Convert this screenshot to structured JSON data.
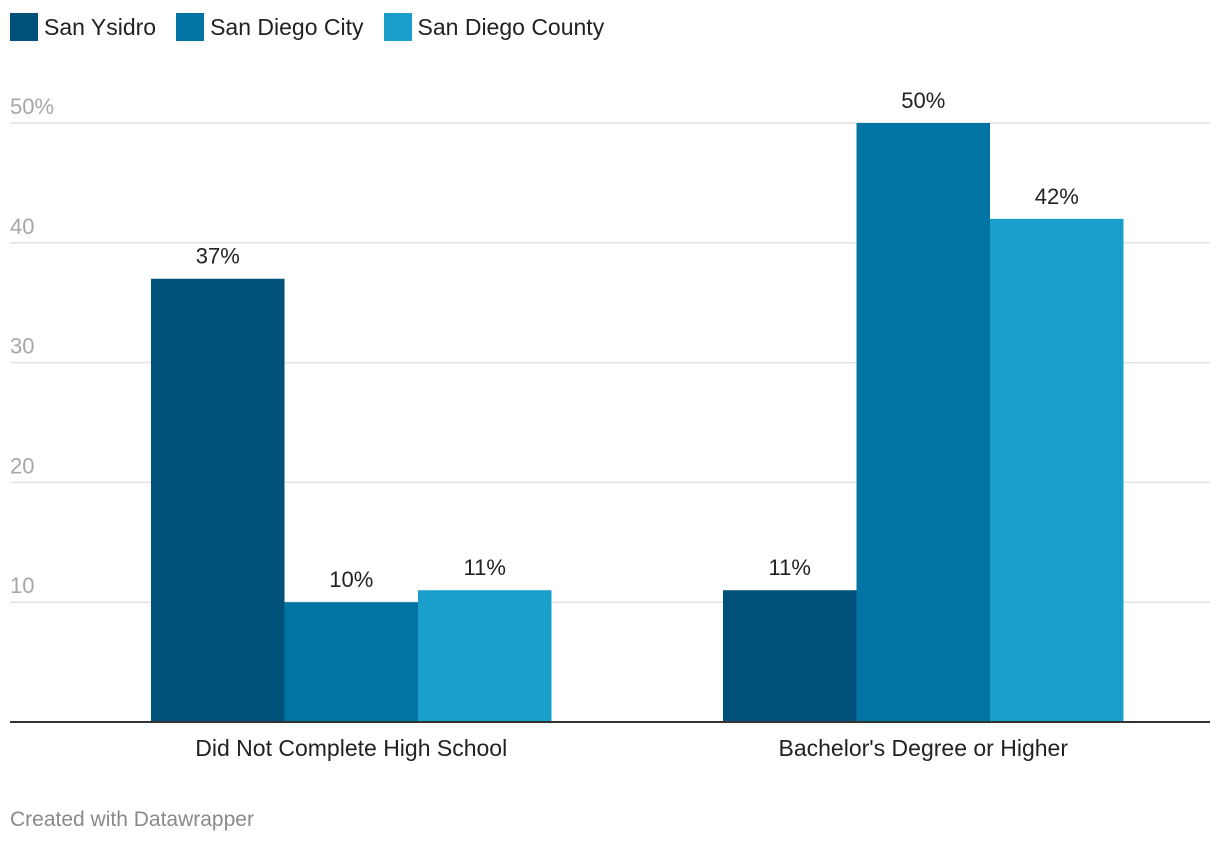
{
  "legend": [
    {
      "name": "San Ysidro",
      "color": "#00527a"
    },
    {
      "name": "San Diego City",
      "color": "#0274a3"
    },
    {
      "name": "San Diego County",
      "color": "#1a9fcd"
    }
  ],
  "footer": "Created with Datawrapper",
  "chart_data": {
    "type": "bar",
    "categories": [
      "Did Not Complete High School",
      "Bachelor's Degree or Higher"
    ],
    "series": [
      {
        "name": "San Ysidro",
        "values": [
          37,
          11
        ],
        "labels": [
          "37%",
          "11%"
        ],
        "color": "#00527a"
      },
      {
        "name": "San Diego City",
        "values": [
          10,
          50
        ],
        "labels": [
          "10%",
          "50%"
        ],
        "color": "#0274a3"
      },
      {
        "name": "San Diego County",
        "values": [
          11,
          42
        ],
        "labels": [
          "11%",
          "42%"
        ],
        "color": "#1a9fcd"
      }
    ],
    "ylim": [
      0,
      50
    ],
    "yticks": [
      10,
      20,
      30,
      40,
      50
    ],
    "ytick_labels": [
      "10",
      "20",
      "30",
      "40",
      "50%"
    ],
    "grid": true,
    "legend_position": "top-left",
    "title": "",
    "xlabel": "",
    "ylabel": ""
  }
}
